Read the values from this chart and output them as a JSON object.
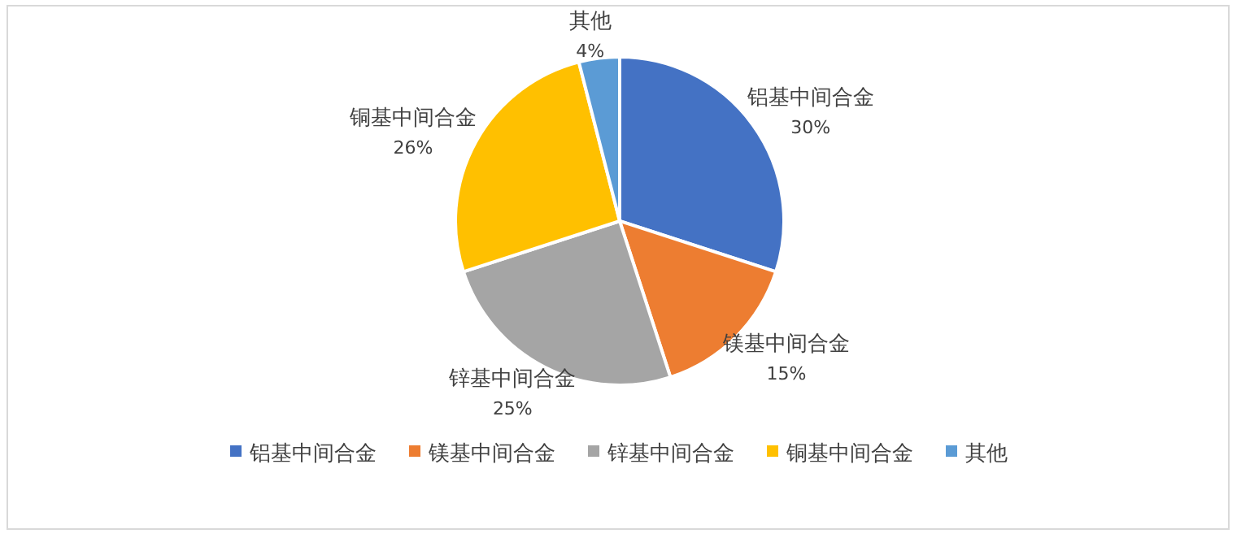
{
  "chart_data": {
    "type": "pie",
    "categories": [
      "铝基中间合金",
      "镁基中间合金",
      "锌基中间合金",
      "铜基中间合金",
      "其他"
    ],
    "values": [
      30,
      15,
      25,
      26,
      4
    ],
    "colors": [
      "#4472c4",
      "#ed7d31",
      "#a5a5a5",
      "#ffc000",
      "#5b9bd5"
    ],
    "value_labels": [
      "30%",
      "15%",
      "25%",
      "26%",
      "4%"
    ],
    "legend": "bottom"
  }
}
